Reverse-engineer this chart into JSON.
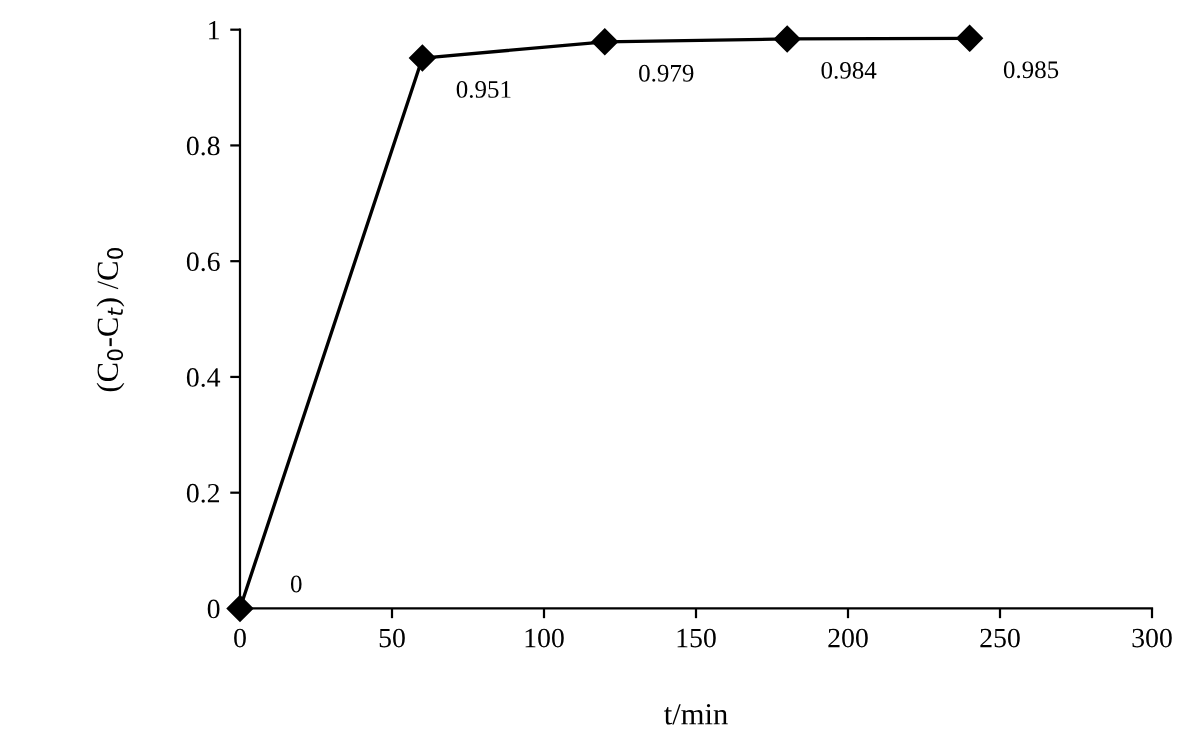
{
  "chart_data": {
    "type": "line",
    "xlabel": "t/min",
    "ylabel": "(C$_{0}$-C$_{t}$) /C$_{0}$",
    "x": [
      0,
      60,
      120,
      180,
      240
    ],
    "values": [
      0,
      0.951,
      0.979,
      0.984,
      0.985
    ],
    "value_labels": [
      "0",
      "0.951",
      "0.979",
      "0.984",
      "0.985"
    ],
    "color": "#000000",
    "marker": "diamond",
    "line_style": "solid",
    "grid": false,
    "legend": false,
    "xlim": [
      0,
      300
    ],
    "xticks": [
      0,
      50,
      100,
      150,
      200,
      250,
      300
    ],
    "ylim": [
      0,
      1
    ],
    "yticks": [
      0,
      0.2,
      0.4,
      0.6,
      0.8,
      1
    ]
  }
}
